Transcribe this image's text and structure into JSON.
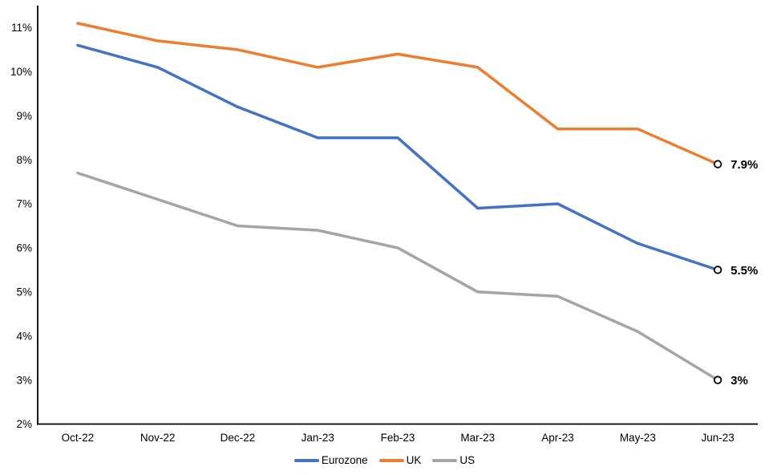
{
  "chart_data": {
    "type": "line",
    "title": "",
    "xlabel": "",
    "ylabel": "",
    "categories": [
      "Oct-22",
      "Nov-22",
      "Dec-22",
      "Jan-23",
      "Feb-23",
      "Mar-23",
      "Apr-23",
      "May-23",
      "Jun-23"
    ],
    "series": [
      {
        "name": "Eurozone",
        "color": "#4472C4",
        "values": [
          10.6,
          10.1,
          9.2,
          8.5,
          8.5,
          6.9,
          7.0,
          6.1,
          5.5
        ],
        "end_label": "5.5%"
      },
      {
        "name": "UK",
        "color": "#ED7D31",
        "values": [
          11.1,
          10.7,
          10.5,
          10.1,
          10.4,
          10.1,
          8.7,
          8.7,
          7.9
        ],
        "end_label": "7.9%"
      },
      {
        "name": "US",
        "color": "#A5A5A5",
        "values": [
          7.7,
          7.1,
          6.5,
          6.4,
          6.0,
          5.0,
          4.9,
          4.1,
          3.0
        ],
        "end_label": "3%"
      }
    ],
    "ylim": [
      2,
      11.5
    ],
    "ytick_values": [
      2,
      3,
      4,
      5,
      6,
      7,
      8,
      9,
      10,
      11
    ],
    "ytick_labels": [
      "2%",
      "3%",
      "4%",
      "5%",
      "6%",
      "7%",
      "8%",
      "9%",
      "10%",
      "11%"
    ],
    "grid": false,
    "legend_position": "bottom",
    "axis_color": "#000000",
    "end_marker": {
      "shape": "open-circle",
      "fill": "#FFFFFF",
      "stroke": "#000000"
    }
  }
}
